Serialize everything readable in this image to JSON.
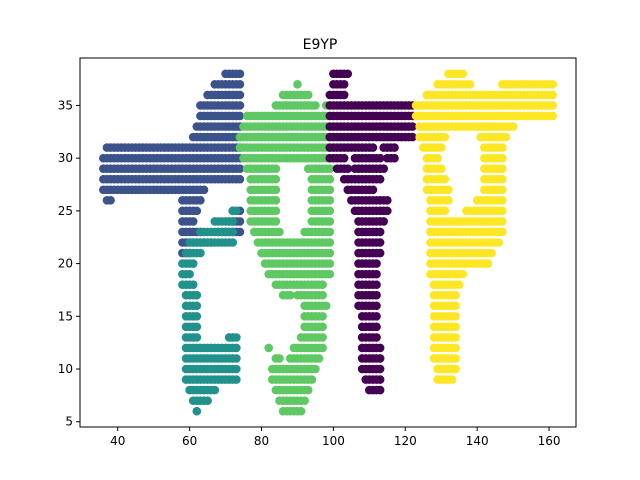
{
  "chart_data": {
    "type": "scatter",
    "title": "E9YP",
    "xlabel": "",
    "ylabel": "",
    "xlim": [
      29.5,
      167.5
    ],
    "ylim": [
      4.5,
      39.5
    ],
    "x_ticks": [
      40,
      60,
      80,
      100,
      120,
      140,
      160
    ],
    "y_ticks": [
      5,
      10,
      15,
      20,
      25,
      30,
      35
    ],
    "grid": false,
    "legend": "none",
    "marker_radius_data_units": 1.2,
    "series": [
      {
        "color": "#3b528b",
        "runs": [
          [
            38,
            70,
            74
          ],
          [
            37,
            67,
            74
          ],
          [
            36,
            65,
            74
          ],
          [
            35,
            63,
            74
          ],
          [
            34,
            63,
            74
          ],
          [
            33,
            62,
            74
          ],
          [
            32,
            61,
            74
          ],
          [
            31,
            37,
            74
          ],
          [
            30,
            36,
            74
          ],
          [
            29,
            36,
            74
          ],
          [
            28,
            36,
            74
          ],
          [
            27,
            36,
            64
          ],
          [
            26,
            37,
            38
          ],
          [
            26,
            58,
            63
          ],
          [
            25,
            58,
            62
          ],
          [
            25,
            72,
            74
          ],
          [
            24,
            58,
            61
          ],
          [
            24,
            71,
            74
          ],
          [
            23,
            58,
            63
          ],
          [
            23,
            68,
            74
          ],
          [
            22,
            58,
            66
          ],
          [
            21,
            58,
            60
          ]
        ]
      },
      {
        "color": "#21918c",
        "runs": [
          [
            25,
            72,
            73
          ],
          [
            24,
            67,
            72
          ],
          [
            23,
            63,
            72
          ],
          [
            22,
            60,
            72
          ],
          [
            21,
            59,
            63
          ],
          [
            20,
            58,
            61
          ],
          [
            19,
            58,
            60
          ],
          [
            18,
            58,
            61
          ],
          [
            17,
            59,
            62
          ],
          [
            16,
            59,
            62
          ],
          [
            15,
            59,
            62
          ],
          [
            14,
            59,
            62
          ],
          [
            13,
            59,
            62
          ],
          [
            13,
            71,
            73
          ],
          [
            12,
            59,
            73
          ],
          [
            11,
            59,
            73
          ],
          [
            10,
            59,
            73
          ],
          [
            9,
            59,
            73
          ],
          [
            8,
            60,
            67
          ],
          [
            7,
            61,
            65
          ],
          [
            6,
            62,
            62
          ]
        ]
      },
      {
        "color": "#5ec962",
        "runs": [
          [
            37,
            90,
            90
          ],
          [
            36,
            86,
            93
          ],
          [
            35,
            84,
            95
          ],
          [
            35,
            98,
            99
          ],
          [
            34,
            76,
            99
          ],
          [
            33,
            75,
            99
          ],
          [
            32,
            74,
            99
          ],
          [
            31,
            74,
            99
          ],
          [
            30,
            75,
            99
          ],
          [
            29,
            76,
            84
          ],
          [
            29,
            93,
            99
          ],
          [
            28,
            77,
            84
          ],
          [
            28,
            94,
            99
          ],
          [
            27,
            77,
            84
          ],
          [
            27,
            94,
            99
          ],
          [
            26,
            77,
            84
          ],
          [
            26,
            94,
            99
          ],
          [
            25,
            77,
            84
          ],
          [
            25,
            94,
            99
          ],
          [
            24,
            77,
            84
          ],
          [
            24,
            94,
            99
          ],
          [
            23,
            78,
            85
          ],
          [
            23,
            92,
            99
          ],
          [
            22,
            79,
            99
          ],
          [
            21,
            80,
            99
          ],
          [
            20,
            81,
            99
          ],
          [
            19,
            82,
            99
          ],
          [
            18,
            84,
            97
          ],
          [
            17,
            86,
            88
          ],
          [
            17,
            90,
            97
          ],
          [
            16,
            92,
            98
          ],
          [
            15,
            92,
            97
          ],
          [
            14,
            92,
            97
          ],
          [
            13,
            91,
            97
          ],
          [
            12,
            82,
            82
          ],
          [
            12,
            89,
            97
          ],
          [
            11,
            84,
            85
          ],
          [
            11,
            88,
            96
          ],
          [
            10,
            83,
            95
          ],
          [
            9,
            83,
            94
          ],
          [
            8,
            84,
            93
          ],
          [
            7,
            85,
            92
          ],
          [
            6,
            86,
            91
          ]
        ]
      },
      {
        "color": "#440154",
        "runs": [
          [
            38,
            100,
            104
          ],
          [
            37,
            100,
            103
          ],
          [
            36,
            99,
            103
          ],
          [
            35,
            99,
            122
          ],
          [
            34,
            99,
            122
          ],
          [
            33,
            99,
            122
          ],
          [
            32,
            99,
            122
          ],
          [
            31,
            99,
            111
          ],
          [
            31,
            114,
            117
          ],
          [
            30,
            99,
            103
          ],
          [
            30,
            106,
            113
          ],
          [
            30,
            115,
            117
          ],
          [
            29,
            101,
            104
          ],
          [
            29,
            106,
            114
          ],
          [
            28,
            103,
            113
          ],
          [
            27,
            104,
            111
          ],
          [
            26,
            105,
            115
          ],
          [
            25,
            106,
            115
          ],
          [
            24,
            107,
            114
          ],
          [
            23,
            107,
            113
          ],
          [
            22,
            107,
            113
          ],
          [
            21,
            107,
            113
          ],
          [
            20,
            107,
            112
          ],
          [
            19,
            107,
            112
          ],
          [
            18,
            107,
            112
          ],
          [
            17,
            107,
            112
          ],
          [
            16,
            107,
            112
          ],
          [
            15,
            108,
            112
          ],
          [
            14,
            108,
            112
          ],
          [
            13,
            108,
            112
          ],
          [
            12,
            108,
            113
          ],
          [
            11,
            108,
            113
          ],
          [
            10,
            108,
            113
          ],
          [
            9,
            109,
            113
          ],
          [
            8,
            110,
            113
          ]
        ]
      },
      {
        "color": "#fde725",
        "runs": [
          [
            38,
            132,
            136
          ],
          [
            37,
            129,
            138
          ],
          [
            37,
            147,
            161
          ],
          [
            36,
            126,
            161
          ],
          [
            35,
            123,
            161
          ],
          [
            34,
            123,
            161
          ],
          [
            33,
            124,
            150
          ],
          [
            32,
            124,
            131
          ],
          [
            32,
            141,
            148
          ],
          [
            31,
            125,
            130
          ],
          [
            31,
            142,
            147
          ],
          [
            30,
            126,
            129
          ],
          [
            30,
            142,
            147
          ],
          [
            29,
            126,
            130
          ],
          [
            29,
            142,
            147
          ],
          [
            28,
            126,
            131
          ],
          [
            28,
            142,
            147
          ],
          [
            27,
            126,
            132
          ],
          [
            27,
            142,
            147
          ],
          [
            26,
            127,
            132
          ],
          [
            26,
            140,
            147
          ],
          [
            25,
            127,
            131
          ],
          [
            25,
            137,
            147
          ],
          [
            24,
            127,
            147
          ],
          [
            23,
            127,
            147
          ],
          [
            22,
            127,
            146
          ],
          [
            21,
            127,
            144
          ],
          [
            20,
            127,
            143
          ],
          [
            19,
            127,
            136
          ],
          [
            18,
            128,
            135
          ],
          [
            17,
            128,
            134
          ],
          [
            16,
            128,
            134
          ],
          [
            15,
            128,
            134
          ],
          [
            14,
            128,
            134
          ],
          [
            13,
            128,
            134
          ],
          [
            12,
            128,
            134
          ],
          [
            11,
            128,
            134
          ],
          [
            10,
            129,
            134
          ],
          [
            9,
            129,
            133
          ]
        ]
      }
    ]
  }
}
